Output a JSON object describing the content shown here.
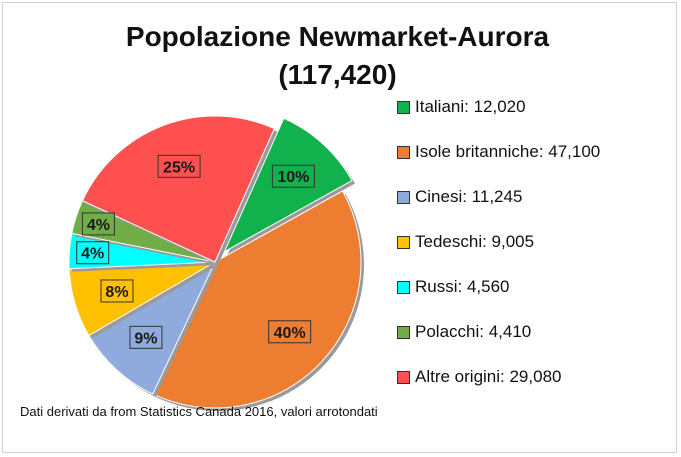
{
  "chart_data": {
    "type": "pie",
    "title": "Popolazione Newmarket-Aurora",
    "subtitle": "(117,420)",
    "categories": [
      "Italiani",
      "Isole britanniche",
      "Cinesi",
      "Tedeschi",
      "Russi",
      "Polacchi",
      "Altre origini"
    ],
    "values": [
      12020,
      47100,
      11245,
      9005,
      4560,
      4410,
      29080
    ],
    "percent_labels": [
      "10%",
      "40%",
      "9%",
      "8%",
      "4%",
      "4%",
      "25%"
    ],
    "legend_labels": [
      "Italiani: 12,020",
      "Isole britanniche: 47,100",
      "Cinesi: 11,245",
      "Tedeschi: 9,005",
      "Russi: 4,560",
      "Polacchi: 4,410",
      "Altre origini: 29,080"
    ],
    "colors": [
      "#11b14d",
      "#ed7d31",
      "#8faadc",
      "#ffc000",
      "#00ffff",
      "#70ad47",
      "#ff5050"
    ],
    "exploded_slice": "Italiani",
    "legend_position": "right",
    "source_note": "Dati derivati da from Statistics Canada 2016, valori arrotondati"
  }
}
